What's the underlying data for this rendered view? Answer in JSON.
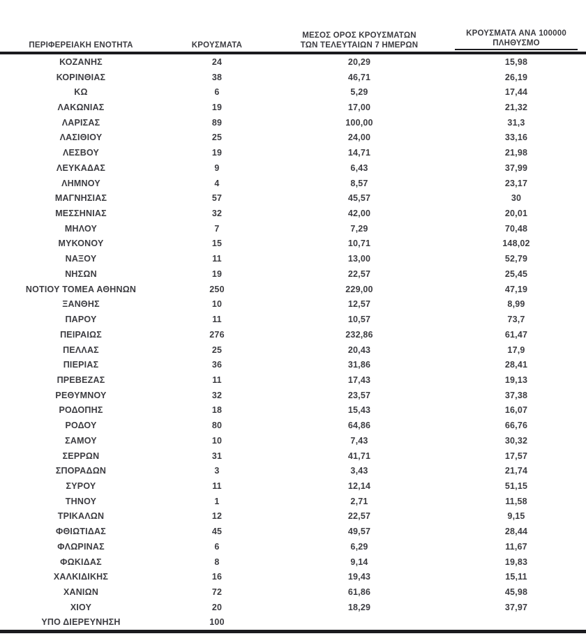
{
  "colors": {
    "text": "#3c3c41",
    "border": "#1b1b1f",
    "background": "#ffffff"
  },
  "table": {
    "columns": {
      "region": "ΠΕΡΙΦΕΡΕΙΑΚΗ ΕΝΟΤΗΤΑ",
      "cases": "ΚΡΟΥΣΜΑΤΑ",
      "avg7_line1": "ΜΕΣΟΣ ΟΡΟΣ ΚΡΟΥΣΜΑΤΩΝ",
      "avg7_line2": "ΤΩΝ ΤΕΛΕΥΤΑΙΩΝ 7 ΗΜΕΡΩΝ",
      "per100k_line1": "ΚΡΟΥΣΜΑΤΑ ΑΝΑ 100000",
      "per100k_line2": "ΠΛΗΘΥΣΜΟ"
    },
    "rows": [
      {
        "region": "ΚΟΖΑΝΗΣ",
        "cases": "24",
        "avg7": "20,29",
        "per100k": "15,98"
      },
      {
        "region": "ΚΟΡΙΝΘΙΑΣ",
        "cases": "38",
        "avg7": "46,71",
        "per100k": "26,19"
      },
      {
        "region": "ΚΩ",
        "cases": "6",
        "avg7": "5,29",
        "per100k": "17,44"
      },
      {
        "region": "ΛΑΚΩΝΙΑΣ",
        "cases": "19",
        "avg7": "17,00",
        "per100k": "21,32"
      },
      {
        "region": "ΛΑΡΙΣΑΣ",
        "cases": "89",
        "avg7": "100,00",
        "per100k": "31,3"
      },
      {
        "region": "ΛΑΣΙΘΙΟΥ",
        "cases": "25",
        "avg7": "24,00",
        "per100k": "33,16"
      },
      {
        "region": "ΛΕΣΒΟΥ",
        "cases": "19",
        "avg7": "14,71",
        "per100k": "21,98"
      },
      {
        "region": "ΛΕΥΚΑΔΑΣ",
        "cases": "9",
        "avg7": "6,43",
        "per100k": "37,99"
      },
      {
        "region": "ΛΗΜΝΟΥ",
        "cases": "4",
        "avg7": "8,57",
        "per100k": "23,17"
      },
      {
        "region": "ΜΑΓΝΗΣΙΑΣ",
        "cases": "57",
        "avg7": "45,57",
        "per100k": "30"
      },
      {
        "region": "ΜΕΣΣΗΝΙΑΣ",
        "cases": "32",
        "avg7": "42,00",
        "per100k": "20,01"
      },
      {
        "region": "ΜΗΛΟΥ",
        "cases": "7",
        "avg7": "7,29",
        "per100k": "70,48"
      },
      {
        "region": "ΜΥΚΟΝΟΥ",
        "cases": "15",
        "avg7": "10,71",
        "per100k": "148,02"
      },
      {
        "region": "ΝΑΞΟΥ",
        "cases": "11",
        "avg7": "13,00",
        "per100k": "52,79"
      },
      {
        "region": "ΝΗΣΩΝ",
        "cases": "19",
        "avg7": "22,57",
        "per100k": "25,45"
      },
      {
        "region": "ΝΟΤΙΟΥ ΤΟΜΕΑ ΑΘΗΝΩΝ",
        "cases": "250",
        "avg7": "229,00",
        "per100k": "47,19"
      },
      {
        "region": "ΞΑΝΘΗΣ",
        "cases": "10",
        "avg7": "12,57",
        "per100k": "8,99"
      },
      {
        "region": "ΠΑΡΟΥ",
        "cases": "11",
        "avg7": "10,57",
        "per100k": "73,7"
      },
      {
        "region": "ΠΕΙΡΑΙΩΣ",
        "cases": "276",
        "avg7": "232,86",
        "per100k": "61,47"
      },
      {
        "region": "ΠΕΛΛΑΣ",
        "cases": "25",
        "avg7": "20,43",
        "per100k": "17,9"
      },
      {
        "region": "ΠΙΕΡΙΑΣ",
        "cases": "36",
        "avg7": "31,86",
        "per100k": "28,41"
      },
      {
        "region": "ΠΡΕΒΕΖΑΣ",
        "cases": "11",
        "avg7": "17,43",
        "per100k": "19,13"
      },
      {
        "region": "ΡΕΘΥΜΝΟΥ",
        "cases": "32",
        "avg7": "23,57",
        "per100k": "37,38"
      },
      {
        "region": "ΡΟΔΟΠΗΣ",
        "cases": "18",
        "avg7": "15,43",
        "per100k": "16,07"
      },
      {
        "region": "ΡΟΔΟΥ",
        "cases": "80",
        "avg7": "64,86",
        "per100k": "66,76"
      },
      {
        "region": "ΣΑΜΟΥ",
        "cases": "10",
        "avg7": "7,43",
        "per100k": "30,32"
      },
      {
        "region": "ΣΕΡΡΩΝ",
        "cases": "31",
        "avg7": "41,71",
        "per100k": "17,57"
      },
      {
        "region": "ΣΠΟΡΑΔΩΝ",
        "cases": "3",
        "avg7": "3,43",
        "per100k": "21,74"
      },
      {
        "region": "ΣΥΡΟΥ",
        "cases": "11",
        "avg7": "12,14",
        "per100k": "51,15"
      },
      {
        "region": "ΤΗΝΟΥ",
        "cases": "1",
        "avg7": "2,71",
        "per100k": "11,58"
      },
      {
        "region": "ΤΡΙΚΑΛΩΝ",
        "cases": "12",
        "avg7": "22,57",
        "per100k": "9,15"
      },
      {
        "region": "ΦΘΙΩΤΙΔΑΣ",
        "cases": "45",
        "avg7": "49,57",
        "per100k": "28,44"
      },
      {
        "region": "ΦΛΩΡΙΝΑΣ",
        "cases": "6",
        "avg7": "6,29",
        "per100k": "11,67"
      },
      {
        "region": "ΦΩΚΙΔΑΣ",
        "cases": "8",
        "avg7": "9,14",
        "per100k": "19,83"
      },
      {
        "region": "ΧΑΛΚΙΔΙΚΗΣ",
        "cases": "16",
        "avg7": "19,43",
        "per100k": "15,11"
      },
      {
        "region": "ΧΑΝΙΩΝ",
        "cases": "72",
        "avg7": "61,86",
        "per100k": "45,98"
      },
      {
        "region": "ΧΙΟΥ",
        "cases": "20",
        "avg7": "18,29",
        "per100k": "37,97"
      },
      {
        "region": "ΥΠΟ ΔΙΕΡΕΥΝΗΣΗ",
        "cases": "100",
        "avg7": "",
        "per100k": ""
      }
    ]
  }
}
